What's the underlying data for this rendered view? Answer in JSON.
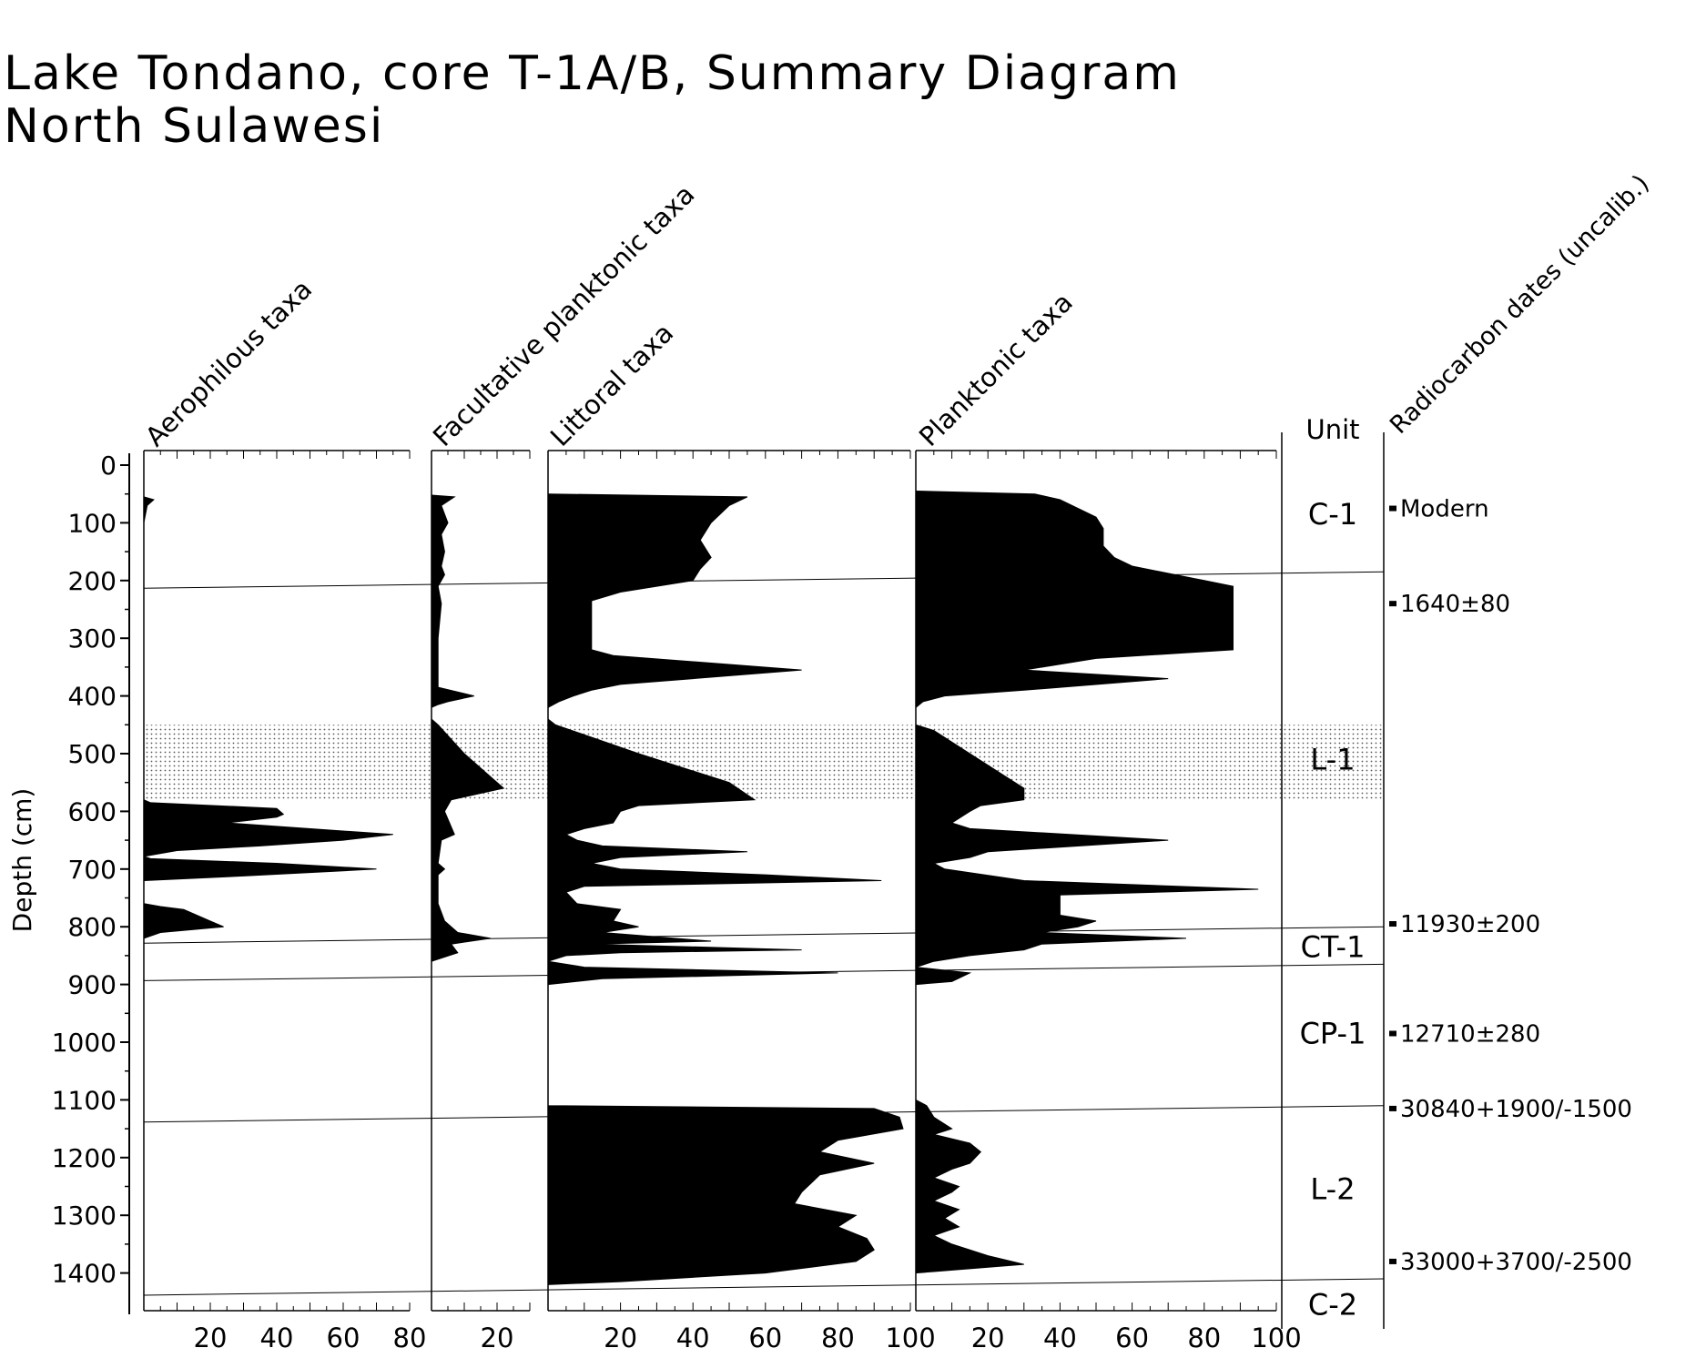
{
  "header": {
    "title_line1": "Lake Tondano, core T-1A/B, Summary Diagram",
    "title_line2": "North Sulawesi"
  },
  "chart_data": {
    "type": "area",
    "ylabel": "Depth (cm)",
    "yticks": [
      "0",
      "100",
      "200",
      "300",
      "400",
      "500",
      "600",
      "700",
      "800",
      "900",
      "1000",
      "1100",
      "1200",
      "1300",
      "1400"
    ],
    "ylim": [
      1420,
      0
    ],
    "shaded_interval": [
      450,
      580
    ],
    "series": [
      {
        "name": "Aerophilous taxa",
        "xticks": [
          "20",
          "40",
          "60",
          "80"
        ],
        "xlim": [
          0,
          80
        ],
        "profile": [
          [
            55,
            0
          ],
          [
            60,
            3
          ],
          [
            70,
            1
          ],
          [
            100,
            0
          ],
          [
            580,
            0
          ],
          [
            585,
            2
          ],
          [
            595,
            40
          ],
          [
            605,
            42
          ],
          [
            610,
            40
          ],
          [
            620,
            25
          ],
          [
            640,
            75
          ],
          [
            650,
            60
          ],
          [
            660,
            35
          ],
          [
            668,
            10
          ],
          [
            678,
            0
          ],
          [
            682,
            2
          ],
          [
            690,
            40
          ],
          [
            700,
            70
          ],
          [
            712,
            30
          ],
          [
            720,
            0
          ],
          [
            760,
            0
          ],
          [
            765,
            5
          ],
          [
            770,
            12
          ],
          [
            790,
            20
          ],
          [
            800,
            24
          ],
          [
            810,
            5
          ],
          [
            820,
            0
          ]
        ]
      },
      {
        "name": "Facultative planktonic taxa",
        "xticks": [
          "20"
        ],
        "xlim": [
          0,
          30
        ],
        "profile": [
          [
            52,
            0
          ],
          [
            55,
            7
          ],
          [
            70,
            3
          ],
          [
            100,
            5
          ],
          [
            120,
            3
          ],
          [
            150,
            4
          ],
          [
            175,
            3
          ],
          [
            190,
            4
          ],
          [
            210,
            2
          ],
          [
            240,
            3
          ],
          [
            300,
            2
          ],
          [
            350,
            2
          ],
          [
            385,
            2
          ],
          [
            400,
            13
          ],
          [
            410,
            5
          ],
          [
            415,
            2
          ],
          [
            420,
            0
          ],
          [
            440,
            0
          ],
          [
            450,
            2
          ],
          [
            500,
            10
          ],
          [
            540,
            18
          ],
          [
            560,
            22
          ],
          [
            580,
            6
          ],
          [
            600,
            4
          ],
          [
            640,
            7
          ],
          [
            650,
            3
          ],
          [
            690,
            2
          ],
          [
            700,
            4
          ],
          [
            710,
            2
          ],
          [
            760,
            2
          ],
          [
            790,
            4
          ],
          [
            810,
            8
          ],
          [
            820,
            18
          ],
          [
            830,
            6
          ],
          [
            845,
            8
          ],
          [
            860,
            0
          ]
        ]
      },
      {
        "name": "Littoral taxa",
        "xticks": [
          "20",
          "40",
          "60",
          "80",
          "100"
        ],
        "xlim": [
          0,
          100
        ],
        "profile": [
          [
            50,
            0
          ],
          [
            55,
            55
          ],
          [
            70,
            50
          ],
          [
            100,
            45
          ],
          [
            130,
            42
          ],
          [
            160,
            45
          ],
          [
            180,
            42
          ],
          [
            200,
            40
          ],
          [
            220,
            20
          ],
          [
            235,
            12
          ],
          [
            250,
            12
          ],
          [
            300,
            12
          ],
          [
            320,
            12
          ],
          [
            330,
            18
          ],
          [
            355,
            70
          ],
          [
            380,
            20
          ],
          [
            390,
            12
          ],
          [
            400,
            7
          ],
          [
            410,
            3
          ],
          [
            420,
            0
          ],
          [
            440,
            0
          ],
          [
            450,
            2
          ],
          [
            500,
            25
          ],
          [
            550,
            50
          ],
          [
            580,
            57
          ],
          [
            590,
            25
          ],
          [
            600,
            20
          ],
          [
            620,
            18
          ],
          [
            630,
            10
          ],
          [
            640,
            5
          ],
          [
            650,
            8
          ],
          [
            660,
            15
          ],
          [
            670,
            55
          ],
          [
            680,
            20
          ],
          [
            690,
            12
          ],
          [
            700,
            20
          ],
          [
            710,
            60
          ],
          [
            720,
            92
          ],
          [
            730,
            10
          ],
          [
            740,
            5
          ],
          [
            760,
            8
          ],
          [
            770,
            20
          ],
          [
            790,
            18
          ],
          [
            800,
            25
          ],
          [
            810,
            15
          ],
          [
            820,
            35
          ],
          [
            825,
            45
          ],
          [
            830,
            12
          ],
          [
            840,
            70
          ],
          [
            845,
            20
          ],
          [
            850,
            5
          ],
          [
            860,
            0
          ],
          [
            870,
            10
          ],
          [
            880,
            80
          ],
          [
            890,
            15
          ],
          [
            900,
            0
          ],
          [
            1110,
            0
          ],
          [
            1115,
            90
          ],
          [
            1130,
            97
          ],
          [
            1150,
            98
          ],
          [
            1170,
            80
          ],
          [
            1190,
            75
          ],
          [
            1210,
            90
          ],
          [
            1230,
            75
          ],
          [
            1260,
            70
          ],
          [
            1280,
            68
          ],
          [
            1300,
            85
          ],
          [
            1320,
            80
          ],
          [
            1340,
            88
          ],
          [
            1360,
            90
          ],
          [
            1380,
            85
          ],
          [
            1400,
            60
          ],
          [
            1415,
            20
          ],
          [
            1420,
            0
          ]
        ]
      },
      {
        "name": "Planktonic taxa",
        "xticks": [
          "20",
          "40",
          "60",
          "80",
          "100"
        ],
        "xlim": [
          0,
          100
        ],
        "profile": [
          [
            45,
            0
          ],
          [
            50,
            33
          ],
          [
            60,
            40
          ],
          [
            90,
            50
          ],
          [
            110,
            52
          ],
          [
            140,
            52
          ],
          [
            160,
            55
          ],
          [
            175,
            60
          ],
          [
            200,
            80
          ],
          [
            210,
            88
          ],
          [
            250,
            88
          ],
          [
            300,
            88
          ],
          [
            320,
            88
          ],
          [
            335,
            50
          ],
          [
            355,
            30
          ],
          [
            370,
            70
          ],
          [
            390,
            30
          ],
          [
            400,
            8
          ],
          [
            410,
            2
          ],
          [
            420,
            0
          ],
          [
            450,
            0
          ],
          [
            460,
            5
          ],
          [
            500,
            15
          ],
          [
            540,
            25
          ],
          [
            560,
            30
          ],
          [
            580,
            30
          ],
          [
            590,
            18
          ],
          [
            600,
            15
          ],
          [
            620,
            10
          ],
          [
            630,
            15
          ],
          [
            650,
            70
          ],
          [
            670,
            20
          ],
          [
            680,
            15
          ],
          [
            690,
            5
          ],
          [
            700,
            8
          ],
          [
            720,
            30
          ],
          [
            735,
            95
          ],
          [
            745,
            40
          ],
          [
            760,
            40
          ],
          [
            780,
            40
          ],
          [
            790,
            50
          ],
          [
            800,
            45
          ],
          [
            810,
            35
          ],
          [
            820,
            75
          ],
          [
            830,
            35
          ],
          [
            840,
            30
          ],
          [
            850,
            15
          ],
          [
            860,
            5
          ],
          [
            870,
            0
          ],
          [
            880,
            15
          ],
          [
            895,
            10
          ],
          [
            900,
            0
          ],
          [
            1100,
            0
          ],
          [
            1110,
            3
          ],
          [
            1130,
            5
          ],
          [
            1150,
            10
          ],
          [
            1160,
            5
          ],
          [
            1175,
            15
          ],
          [
            1190,
            18
          ],
          [
            1210,
            15
          ],
          [
            1220,
            10
          ],
          [
            1235,
            5
          ],
          [
            1250,
            12
          ],
          [
            1260,
            10
          ],
          [
            1275,
            5
          ],
          [
            1290,
            12
          ],
          [
            1305,
            8
          ],
          [
            1320,
            12
          ],
          [
            1335,
            5
          ],
          [
            1350,
            10
          ],
          [
            1370,
            20
          ],
          [
            1385,
            30
          ],
          [
            1400,
            0
          ]
        ]
      }
    ],
    "units": {
      "name": "Unit",
      "boundaries": [
        185,
        800,
        865,
        1110,
        1410
      ],
      "labels": [
        {
          "label": "C-1",
          "depth": 85
        },
        {
          "label": "L-1",
          "depth": 510
        },
        {
          "label": "CT-1",
          "depth": 835
        },
        {
          "label": "CP-1",
          "depth": 985
        },
        {
          "label": "L-2",
          "depth": 1255
        },
        {
          "label": "C-2",
          "depth": 1455
        }
      ]
    },
    "dates": {
      "name": "Radiocarbon dates (uncalib.)",
      "items": [
        {
          "label": "Modern",
          "depth": 75
        },
        {
          "label": "1640±80",
          "depth": 240
        },
        {
          "label": "11930±200",
          "depth": 795
        },
        {
          "label": "12710±280",
          "depth": 985
        },
        {
          "label": "30840+1900/-1500",
          "depth": 1115
        },
        {
          "label": "33000+3700/-2500",
          "depth": 1380
        }
      ]
    }
  }
}
